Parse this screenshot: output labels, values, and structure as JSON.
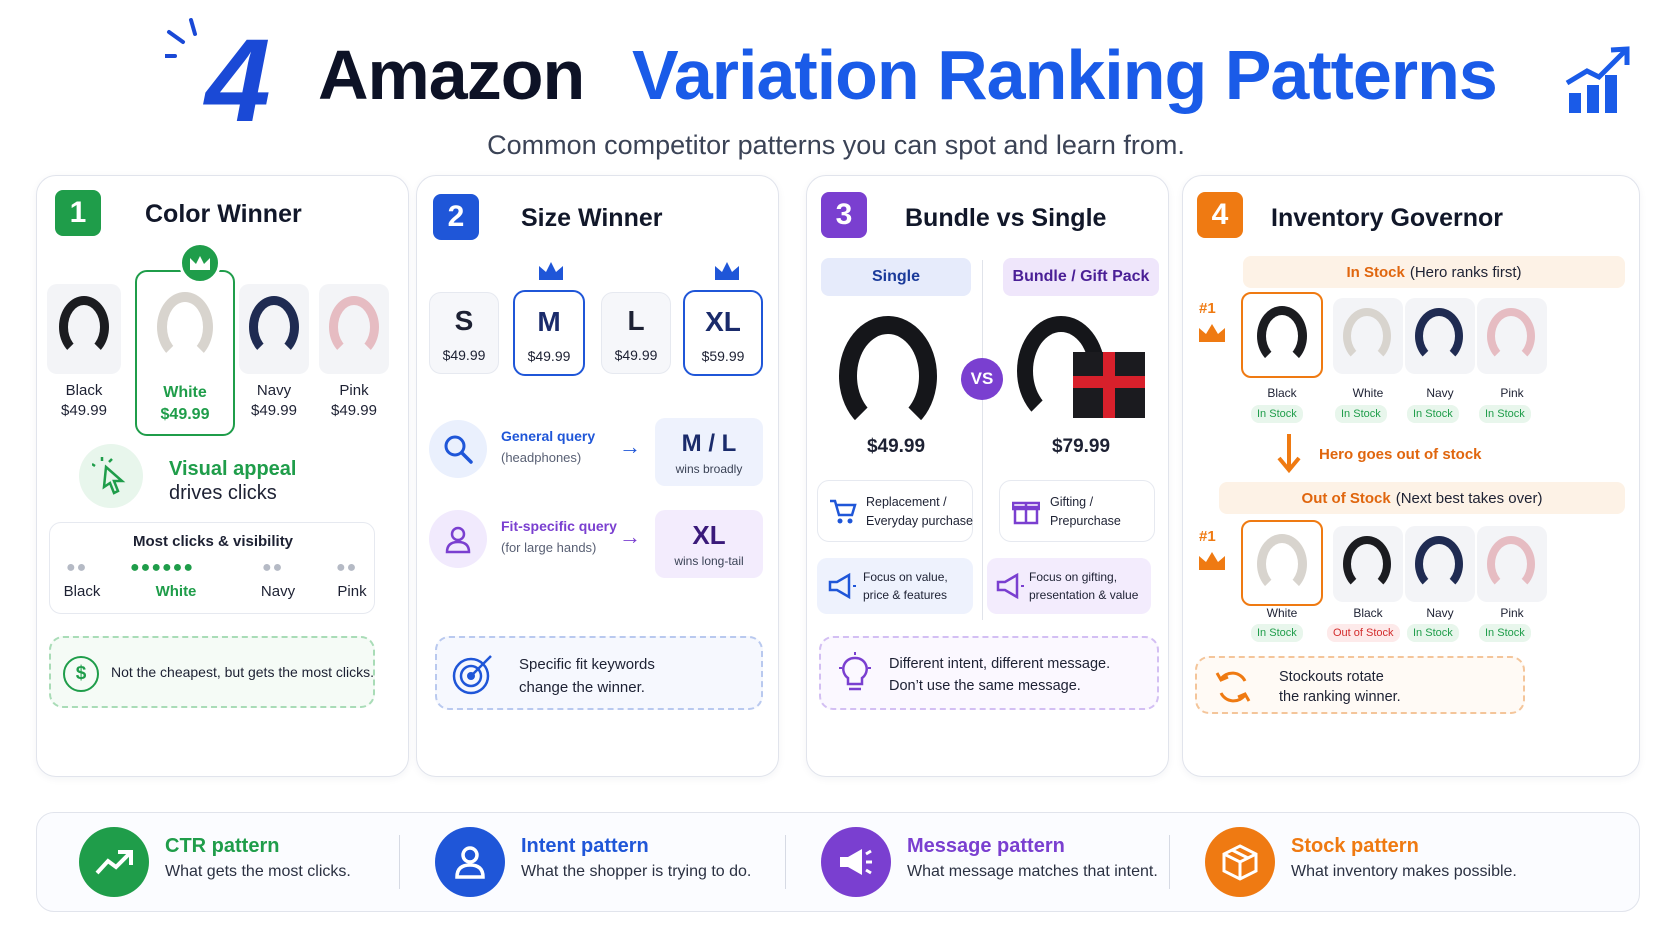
{
  "header": {
    "number": "4",
    "title_dark": "Amazon",
    "title_blue": "Variation Ranking Patterns",
    "subtitle": "Common competitor patterns you can spot and learn from."
  },
  "p1": {
    "num": "1",
    "title": "Color Winner",
    "items": [
      {
        "label": "Black",
        "price": "$49.99"
      },
      {
        "label": "White",
        "price": "$49.99"
      },
      {
        "label": "Navy",
        "price": "$49.99"
      },
      {
        "label": "Pink",
        "price": "$49.99"
      }
    ],
    "appeal_line1": "Visual appeal",
    "appeal_line2": "drives clicks",
    "chart_title": "Most clicks & visibility",
    "chart_labels": [
      "Black",
      "White",
      "Navy",
      "Pink"
    ],
    "note": "Not the cheapest, but gets the most clicks."
  },
  "p2": {
    "num": "2",
    "title": "Size Winner",
    "sizes": [
      {
        "size": "S",
        "price": "$49.99"
      },
      {
        "size": "M",
        "price": "$49.99"
      },
      {
        "size": "L",
        "price": "$49.99"
      },
      {
        "size": "XL",
        "price": "$59.99"
      }
    ],
    "q1_title": "General query",
    "q1_sub": "(headphones)",
    "q1_result": "M / L",
    "q1_result_sub": "wins broadly",
    "q2_title": "Fit-specific query",
    "q2_sub": "(for large hands)",
    "q2_result": "XL",
    "q2_result_sub": "wins long-tail",
    "note_line1": "Specific fit keywords",
    "note_line2": "change the winner."
  },
  "p3": {
    "num": "3",
    "title": "Bundle vs Single",
    "single_tag": "Single",
    "bundle_tag": "Bundle / Gift Pack",
    "vs": "VS",
    "single_price": "$49.99",
    "bundle_price": "$79.99",
    "single_use_1": "Replacement /",
    "single_use_2": "Everyday purchase",
    "bundle_use_1": "Gifting /",
    "bundle_use_2": "Prepurchase",
    "single_focus_1": "Focus on value,",
    "single_focus_2": "price & features",
    "bundle_focus_1": "Focus on gifting,",
    "bundle_focus_2": "presentation & value",
    "note_line1": "Different intent, different message.",
    "note_line2": "Don’t use the same message."
  },
  "p4": {
    "num": "4",
    "title": "Inventory Governor",
    "in_stock_hl": "In Stock",
    "in_stock_rest": "(Hero ranks first)",
    "rank": "#1",
    "row1": [
      {
        "label": "Black",
        "status": "In Stock"
      },
      {
        "label": "White",
        "status": "In Stock"
      },
      {
        "label": "Navy",
        "status": "In Stock"
      },
      {
        "label": "Pink",
        "status": "In Stock"
      }
    ],
    "transition": "Hero goes out of stock",
    "out_hl": "Out of Stock",
    "out_rest": "(Next best takes over)",
    "row2": [
      {
        "label": "White",
        "status": "In Stock"
      },
      {
        "label": "Black",
        "status": "Out of Stock"
      },
      {
        "label": "Navy",
        "status": "In Stock"
      },
      {
        "label": "Pink",
        "status": "In Stock"
      }
    ],
    "note_line1": "Stockouts rotate",
    "note_line2": "the ranking winner."
  },
  "bottom": [
    {
      "title": "CTR pattern",
      "desc": "What gets the most clicks.",
      "color": "#1f9d4a"
    },
    {
      "title": "Intent pattern",
      "desc": "What the shopper is trying to do.",
      "color": "#1f56d8"
    },
    {
      "title": "Message pattern",
      "desc": "What message matches that intent.",
      "color": "#7a3fd0"
    },
    {
      "title": "Stock pattern",
      "desc": "What inventory makes possible.",
      "color": "#ef7a12"
    }
  ],
  "colors": {
    "green": "#1f9d4a",
    "blue": "#1f56d8",
    "purple": "#7a3fd0",
    "orange": "#ef7a12"
  }
}
